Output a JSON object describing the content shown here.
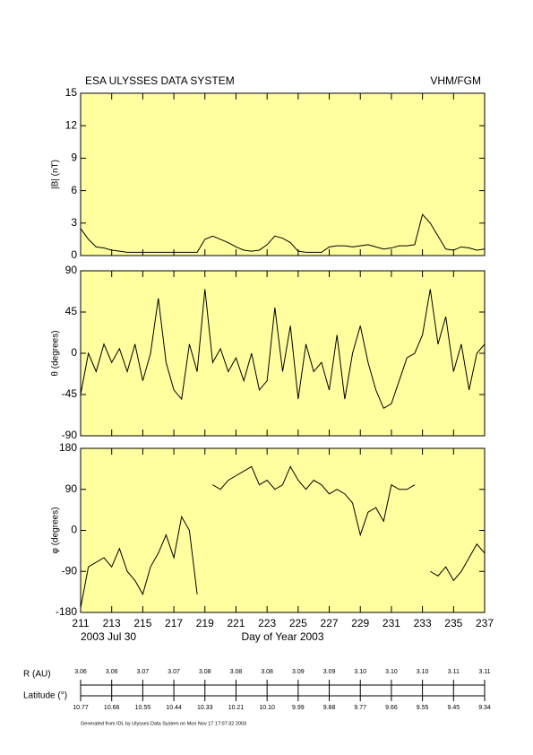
{
  "header": {
    "left": "ESA ULYSSES DATA SYSTEM",
    "right": "VHM/FGM"
  },
  "chart_data": [
    {
      "type": "line",
      "ylabel": "|B| (nT)",
      "color": "#000000",
      "background": "#ffffa0",
      "x": [
        211,
        211.5,
        212,
        212.5,
        213,
        213.5,
        214,
        214.5,
        215,
        215.5,
        216,
        216.5,
        217,
        217.5,
        218,
        218.5,
        219,
        219.5,
        220,
        220.5,
        221,
        221.5,
        222,
        222.5,
        223,
        223.5,
        224,
        224.5,
        225,
        225.5,
        226,
        226.5,
        227,
        227.5,
        228,
        228.5,
        229,
        229.5,
        230,
        230.5,
        231,
        231.5,
        232,
        232.5,
        233,
        233.5,
        234,
        234.5,
        235,
        235.5,
        236,
        236.5,
        237
      ],
      "values": [
        2.5,
        1.5,
        0.8,
        0.7,
        0.5,
        0.4,
        0.3,
        0.3,
        0.3,
        0.3,
        0.3,
        0.3,
        0.3,
        0.3,
        0.3,
        0.3,
        1.5,
        1.8,
        1.5,
        1.2,
        0.8,
        0.5,
        0.4,
        0.5,
        1.0,
        1.8,
        1.6,
        1.2,
        0.4,
        0.3,
        0.3,
        0.3,
        0.8,
        0.9,
        0.9,
        0.8,
        0.9,
        1.0,
        0.8,
        0.6,
        0.7,
        0.9,
        0.9,
        1.0,
        3.8,
        3.0,
        1.8,
        0.6,
        0.5,
        0.8,
        0.7,
        0.5,
        0.6
      ],
      "xlim": [
        211,
        237
      ],
      "xticks": [
        211,
        213,
        215,
        217,
        219,
        221,
        223,
        225,
        227,
        229,
        231,
        233,
        235,
        237
      ],
      "ylim": [
        0,
        15
      ],
      "yticks": [
        0,
        3,
        6,
        9,
        12,
        15
      ]
    },
    {
      "type": "line",
      "ylabel": "θ (degrees)",
      "color": "#000000",
      "background": "#ffffa0",
      "x": [
        211,
        211.5,
        212,
        212.5,
        213,
        213.5,
        214,
        214.5,
        215,
        215.5,
        216,
        216.5,
        217,
        217.5,
        218,
        218.5,
        219,
        219.5,
        220,
        220.5,
        221,
        221.5,
        222,
        222.5,
        223,
        223.5,
        224,
        224.5,
        225,
        225.5,
        226,
        226.5,
        227,
        227.5,
        228,
        228.5,
        229,
        229.5,
        230,
        230.5,
        231,
        231.5,
        232,
        232.5,
        233,
        233.5,
        234,
        234.5,
        235,
        235.5,
        236,
        236.5,
        237
      ],
      "values": [
        -45,
        0,
        -20,
        10,
        -10,
        5,
        -20,
        10,
        -30,
        0,
        60,
        -10,
        -40,
        -50,
        10,
        -20,
        70,
        -10,
        5,
        -20,
        -5,
        -30,
        0,
        -40,
        -30,
        50,
        -20,
        30,
        -50,
        10,
        -20,
        -10,
        -40,
        20,
        -50,
        0,
        30,
        -10,
        -40,
        -60,
        -55,
        -30,
        -5,
        0,
        20,
        70,
        10,
        40,
        -20,
        10,
        -40,
        0,
        10
      ],
      "xlim": [
        211,
        237
      ],
      "xticks": [
        211,
        213,
        215,
        217,
        219,
        221,
        223,
        225,
        227,
        229,
        231,
        233,
        235,
        237
      ],
      "ylim": [
        -90,
        90
      ],
      "yticks": [
        -90,
        -45,
        0,
        45,
        90
      ]
    },
    {
      "type": "line",
      "ylabel": "φ (degrees)",
      "color": "#000000",
      "background": "#ffffa0",
      "xlabel": "Day of Year 2003",
      "annotation": "2003 Jul 30",
      "x": [
        211,
        211.5,
        212,
        212.5,
        213,
        213.5,
        214,
        214.5,
        215,
        215.5,
        216,
        216.5,
        217,
        217.5,
        218,
        218.5,
        219,
        219.5,
        220,
        220.5,
        221,
        221.5,
        222,
        222.5,
        223,
        223.5,
        224,
        224.5,
        225,
        225.5,
        226,
        226.5,
        227,
        227.5,
        228,
        228.5,
        229,
        229.5,
        230,
        230.5,
        231,
        231.5,
        232,
        232.5,
        233,
        233.5,
        234,
        234.5,
        235,
        235.5,
        236,
        236.5,
        237
      ],
      "values": [
        -170,
        -80,
        -70,
        -60,
        -80,
        -40,
        -90,
        -110,
        -140,
        -80,
        -50,
        -10,
        -60,
        30,
        0,
        -140,
        null,
        100,
        90,
        110,
        120,
        130,
        140,
        100,
        110,
        90,
        100,
        140,
        110,
        90,
        110,
        100,
        80,
        90,
        80,
        60,
        -10,
        40,
        50,
        20,
        100,
        90,
        90,
        100,
        null,
        -90,
        -100,
        -80,
        -110,
        -90,
        -60,
        -30,
        -50
      ],
      "xlim": [
        211,
        237
      ],
      "xticks": [
        211,
        213,
        215,
        217,
        219,
        221,
        223,
        225,
        227,
        229,
        231,
        233,
        235,
        237
      ],
      "ylim": [
        -180,
        180
      ],
      "yticks": [
        -180,
        -90,
        0,
        90,
        180
      ]
    }
  ],
  "orbit": {
    "r_label": "R (AU)",
    "lat_label": "Latitude (°)",
    "r": [
      "3.06",
      "3.06",
      "3.07",
      "3.07",
      "3.08",
      "3.08",
      "3.08",
      "3.09",
      "3.09",
      "3.10",
      "3.10",
      "3.10",
      "3.11",
      "3.11"
    ],
    "lat": [
      "10.77",
      "10.66",
      "10.55",
      "10.44",
      "10.33",
      "10.21",
      "10.10",
      "9.99",
      "9.88",
      "9.77",
      "9.66",
      "9.55",
      "9.45",
      "9.34"
    ]
  },
  "footer": "Generated from IDL by Ulysses Data System on Mon Nov 17 17:07:32 2003"
}
